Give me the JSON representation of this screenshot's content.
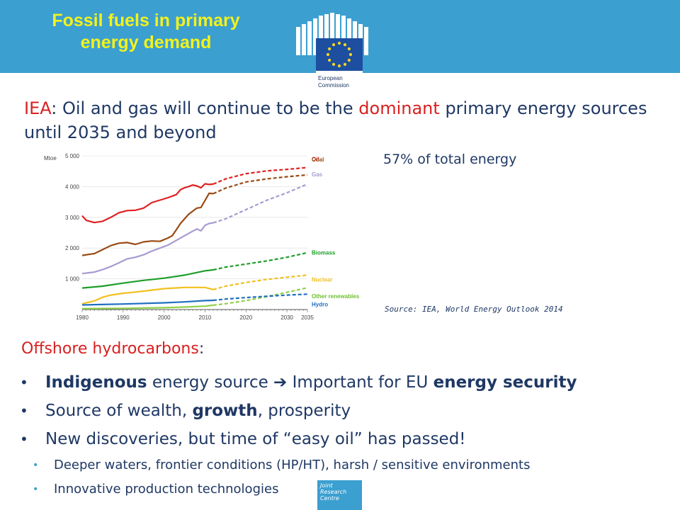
{
  "header": {
    "title_line1": "Fossil fuels in primary",
    "title_line2": "energy demand",
    "logo_text_line1": "European",
    "logo_text_line2": "Commission",
    "banner_color": "#3b9fd0",
    "title_color": "#f2f21c"
  },
  "headline": {
    "iea": "IEA",
    "part1": ": Oil and gas will continue to be the ",
    "dominant": "dominant",
    "part2": " primary energy sources until 2035 and beyond"
  },
  "note": "57% of total energy",
  "source": "Source: IEA, World Energy Outlook 2014",
  "chart_data": {
    "type": "line",
    "ylabel": "Mtoe",
    "ylim": [
      0,
      5000
    ],
    "yticks": [
      1000,
      2000,
      3000,
      4000,
      5000
    ],
    "ytick_labels": [
      "1 000",
      "2 000",
      "3 000",
      "4 000",
      "5 000"
    ],
    "xlim": [
      1980,
      2035
    ],
    "xticks": [
      1980,
      1990,
      2000,
      2010,
      2020,
      2030,
      2035
    ],
    "historical_end": 2012,
    "series": [
      {
        "name": "Oil",
        "color": "#e02020",
        "label_color": "#c81e1e",
        "x": [
          1980,
          1981,
          1983,
          1985,
          1987,
          1989,
          1991,
          1993,
          1995,
          1997,
          1999,
          2001,
          2003,
          2004,
          2005,
          2006,
          2007,
          2008,
          2009,
          2010,
          2011,
          2012,
          2015,
          2020,
          2025,
          2030,
          2035
        ],
        "y": [
          3050,
          2900,
          2830,
          2870,
          3000,
          3150,
          3220,
          3230,
          3300,
          3480,
          3560,
          3640,
          3740,
          3900,
          3960,
          4000,
          4050,
          4020,
          3960,
          4090,
          4070,
          4080,
          4250,
          4420,
          4510,
          4560,
          4620
        ]
      },
      {
        "name": "Coal",
        "color": "#9a4a14",
        "label_color": "#9a4a14",
        "x": [
          1980,
          1983,
          1985,
          1987,
          1989,
          1991,
          1993,
          1995,
          1997,
          1999,
          2001,
          2002,
          2003,
          2004,
          2005,
          2006,
          2007,
          2008,
          2009,
          2010,
          2011,
          2012,
          2015,
          2020,
          2025,
          2030,
          2035
        ],
        "y": [
          1760,
          1820,
          1950,
          2080,
          2160,
          2180,
          2120,
          2200,
          2230,
          2220,
          2330,
          2400,
          2600,
          2800,
          2950,
          3100,
          3200,
          3300,
          3320,
          3550,
          3780,
          3770,
          3950,
          4150,
          4250,
          4320,
          4380
        ]
      },
      {
        "name": "Gas",
        "color": "#a89ad0",
        "label_color": "#a89ad0",
        "x": [
          1980,
          1983,
          1985,
          1987,
          1989,
          1991,
          1993,
          1995,
          1997,
          1999,
          2001,
          2003,
          2005,
          2007,
          2008,
          2009,
          2010,
          2011,
          2012,
          2015,
          2020,
          2025,
          2030,
          2035
        ],
        "y": [
          1170,
          1220,
          1300,
          1400,
          1520,
          1650,
          1700,
          1780,
          1900,
          2000,
          2100,
          2250,
          2400,
          2550,
          2620,
          2560,
          2740,
          2800,
          2820,
          2950,
          3250,
          3550,
          3800,
          4080
        ]
      },
      {
        "name": "Biomass",
        "color": "#1e9e2a",
        "label_color": "#1e9e2a",
        "x": [
          1980,
          1985,
          1990,
          1995,
          2000,
          2005,
          2010,
          2012,
          2015,
          2020,
          2025,
          2030,
          2035
        ],
        "y": [
          700,
          760,
          860,
          950,
          1020,
          1120,
          1260,
          1290,
          1380,
          1480,
          1580,
          1700,
          1850
        ]
      },
      {
        "name": "Nuclear",
        "color": "#f2c01e",
        "label_color": "#f2c01e",
        "x": [
          1980,
          1983,
          1985,
          1987,
          1990,
          1993,
          1995,
          2000,
          2005,
          2007,
          2010,
          2012,
          2015,
          2020,
          2025,
          2030,
          2035
        ],
        "y": [
          190,
          280,
          400,
          470,
          530,
          570,
          600,
          680,
          720,
          720,
          720,
          650,
          760,
          880,
          980,
          1050,
          1120
        ]
      },
      {
        "name": "Other renewables",
        "color": "#8fd04a",
        "label_color": "#6cbf2e",
        "x": [
          1980,
          1990,
          2000,
          2005,
          2010,
          2012,
          2015,
          2020,
          2025,
          2030,
          2035
        ],
        "y": [
          30,
          40,
          60,
          80,
          110,
          140,
          190,
          290,
          420,
          560,
          710
        ]
      },
      {
        "name": "Hydro",
        "color": "#1f6fbf",
        "label_color": "#1f6fbf",
        "x": [
          1980,
          1990,
          2000,
          2005,
          2010,
          2012,
          2015,
          2020,
          2025,
          2030,
          2035
        ],
        "y": [
          150,
          180,
          220,
          250,
          290,
          300,
          340,
          390,
          430,
          470,
          500
        ]
      }
    ]
  },
  "subheading": {
    "part1": "Offshore hydrocarbons",
    "part2": ":"
  },
  "bullets": [
    {
      "b1": "Indigenous",
      "t1": " energy source ",
      "arrow": "➔",
      "t2": " Important for EU ",
      "b2": "energy security"
    },
    {
      "t1": "Source of wealth, ",
      "b1": "growth",
      "t2": ", prosperity"
    },
    {
      "t1": "New discoveries, but time of “easy oil” has passed!"
    }
  ],
  "subbullets": [
    "Deeper waters, frontier conditions (HP/HT), harsh / sensitive environments",
    "Innovative production technologies"
  ],
  "jrc": {
    "line1": "Joint",
    "line2": "Research",
    "line3": "Centre"
  }
}
